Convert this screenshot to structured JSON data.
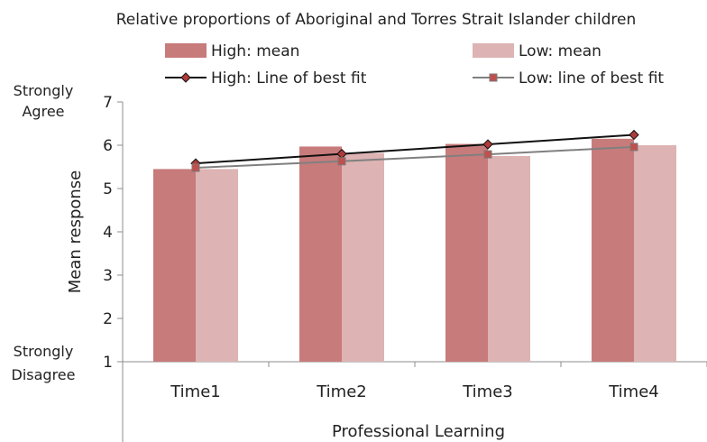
{
  "chart_data": {
    "type": "bar",
    "title": "Relative proportions of  Aboriginal and Torres Strait Islander children",
    "xlabel": "Professional Learning",
    "ylabel": "Mean response",
    "ylim": [
      1,
      7
    ],
    "yticks": [
      1,
      2,
      3,
      4,
      5,
      6,
      7
    ],
    "y_anchor_labels": {
      "top": [
        "Strongly",
        "Agree"
      ],
      "bottom": [
        "Strongly",
        "Disagree"
      ]
    },
    "categories": [
      "Time1",
      "Time2",
      "Time3",
      "Time4"
    ],
    "series": [
      {
        "name": "High: mean",
        "type": "bar",
        "color": "#c87b7b",
        "values": [
          5.45,
          5.97,
          6.03,
          6.15
        ]
      },
      {
        "name": "Low: mean",
        "type": "bar",
        "color": "#ddb3b3",
        "values": [
          5.45,
          5.82,
          5.75,
          6.0
        ]
      },
      {
        "name": "High: Line of best fit",
        "type": "line",
        "color": "#111111",
        "marker": "diamond",
        "marker_color": "#b03a3a",
        "values": [
          5.58,
          5.8,
          6.02,
          6.24
        ]
      },
      {
        "name": "Low: line of best fit",
        "type": "line",
        "color": "#808080",
        "marker": "square",
        "marker_color": "#c0504d",
        "values": [
          5.48,
          5.63,
          5.79,
          5.96
        ]
      }
    ],
    "legend_position": "top",
    "grid": false
  }
}
